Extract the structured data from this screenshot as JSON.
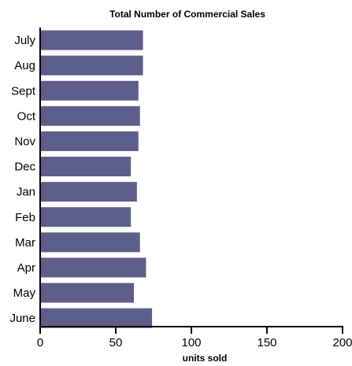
{
  "chart_data": {
    "type": "bar",
    "orientation": "horizontal",
    "title": "Total Number of Commercial Sales",
    "xlabel": "units sold",
    "ylabel": "",
    "categories": [
      "July",
      "Aug",
      "Sept",
      "Oct",
      "Nov",
      "Dec",
      "Jan",
      "Feb",
      "Mar",
      "Apr",
      "May",
      "June"
    ],
    "values": [
      68,
      68,
      65,
      66,
      65,
      60,
      64,
      60,
      66,
      70,
      62,
      74
    ],
    "xlim": [
      0,
      200
    ],
    "xticks": [
      "0",
      "50",
      "100",
      "150",
      "200"
    ],
    "grid": false,
    "colors": {
      "bar": "#5e5e8a",
      "axis": "#000000"
    }
  }
}
